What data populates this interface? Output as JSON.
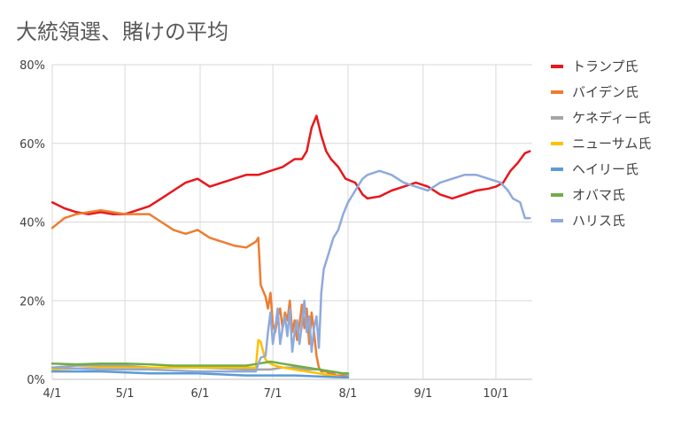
{
  "chart_data": {
    "type": "line",
    "title": "大統領選、賭けの平均",
    "xlabel": "",
    "ylabel": "",
    "x_ticks": [
      {
        "label": "4/1",
        "day": 0
      },
      {
        "label": "5/1",
        "day": 30
      },
      {
        "label": "6/1",
        "day": 61
      },
      {
        "label": "7/1",
        "day": 91
      },
      {
        "label": "8/1",
        "day": 122
      },
      {
        "label": "9/1",
        "day": 153
      },
      {
        "label": "10/1",
        "day": 183
      }
    ],
    "xlim": [
      0,
      198
    ],
    "ylim": [
      0,
      80
    ],
    "y_ticks": [
      "0%",
      "20%",
      "40%",
      "60%",
      "80%"
    ],
    "y_tick_values": [
      0,
      20,
      40,
      60,
      80
    ],
    "grid": true,
    "legend_position": "right",
    "series": [
      {
        "name": "トランプ氏",
        "color": "#e8171c",
        "x": [
          0,
          5,
          10,
          15,
          20,
          25,
          30,
          35,
          40,
          45,
          50,
          55,
          60,
          65,
          70,
          75,
          80,
          85,
          90,
          95,
          100,
          103,
          105,
          107,
          109,
          111,
          113,
          115,
          118,
          121,
          125,
          128,
          130,
          135,
          140,
          145,
          150,
          155,
          160,
          165,
          170,
          175,
          180,
          183,
          186,
          189,
          192,
          195,
          197
        ],
        "y": [
          45,
          43.5,
          42.5,
          42,
          42.5,
          42,
          42,
          43,
          44,
          46,
          48,
          50,
          51,
          49,
          50,
          51,
          52,
          52,
          53,
          54,
          56,
          56,
          58,
          64,
          67,
          62,
          58,
          56,
          54,
          51,
          50,
          47,
          46,
          46.5,
          48,
          49,
          50,
          49,
          47,
          46,
          47,
          48,
          48.5,
          49,
          50,
          53,
          55,
          57.5,
          58
        ]
      },
      {
        "name": "バイデン氏",
        "color": "#ed7d31",
        "x": [
          0,
          5,
          10,
          15,
          20,
          25,
          30,
          35,
          40,
          45,
          50,
          55,
          60,
          65,
          70,
          75,
          80,
          84,
          85,
          86,
          88,
          89,
          90,
          91,
          92,
          93,
          94,
          95,
          96,
          97,
          98,
          99,
          100,
          101,
          102,
          103,
          104,
          105,
          106,
          107,
          108,
          109,
          110,
          111,
          112,
          113,
          114,
          115,
          116,
          117,
          118,
          119,
          120,
          121,
          122
        ],
        "y": [
          38.5,
          41,
          42,
          42.5,
          43,
          42.5,
          42,
          42,
          42,
          40,
          38,
          37,
          38,
          36,
          35,
          34,
          33.5,
          35,
          36,
          24,
          21,
          18,
          22,
          14,
          12,
          16,
          18,
          13,
          17,
          15,
          20,
          12,
          15,
          10,
          14,
          19,
          13,
          18,
          9,
          17,
          12,
          6,
          3,
          2,
          2,
          2,
          1.5,
          1.5,
          1.5,
          1,
          1,
          1,
          1,
          1,
          1
        ]
      },
      {
        "name": "ケネディー氏",
        "color": "#a5a5a5",
        "x": [
          0,
          10,
          20,
          30,
          40,
          50,
          60,
          70,
          80,
          90,
          95,
          100,
          105,
          110,
          115,
          120,
          122
        ],
        "y": [
          3,
          3.5,
          3.5,
          3.5,
          3,
          3,
          3,
          2.8,
          2.5,
          2.5,
          3,
          3,
          2.5,
          2.5,
          2,
          1.5,
          1
        ]
      },
      {
        "name": "ニューサム氏",
        "color": "#ffc000",
        "x": [
          0,
          20,
          40,
          60,
          80,
          84,
          85,
          86,
          87,
          88,
          90,
          92,
          95,
          100,
          105,
          110,
          115,
          120,
          122
        ],
        "y": [
          2.5,
          3,
          3,
          3,
          3,
          3,
          10,
          9.5,
          7,
          5,
          4,
          3.5,
          3,
          2.5,
          2,
          1.5,
          1,
          0.5,
          0.5
        ]
      },
      {
        "name": "ヘイリー氏",
        "color": "#5b9bd5",
        "x": [
          0,
          20,
          40,
          60,
          80,
          100,
          120,
          122
        ],
        "y": [
          2,
          2,
          1.5,
          1.5,
          1,
          1,
          0.5,
          0.5
        ]
      },
      {
        "name": "オバマ氏",
        "color": "#70ad47",
        "x": [
          0,
          10,
          20,
          30,
          40,
          50,
          60,
          70,
          80,
          85,
          90,
          95,
          100,
          105,
          110,
          115,
          120,
          122
        ],
        "y": [
          4,
          3.8,
          4,
          4,
          3.8,
          3.5,
          3.5,
          3.5,
          3.5,
          4,
          4.5,
          4,
          3.5,
          3,
          2.5,
          2,
          1.5,
          1.5
        ]
      },
      {
        "name": "ハリス氏",
        "color": "#8faadc",
        "x": [
          0,
          20,
          40,
          60,
          80,
          84,
          85,
          86,
          88,
          89,
          90,
          91,
          92,
          93,
          94,
          95,
          96,
          97,
          98,
          99,
          100,
          101,
          102,
          103,
          104,
          105,
          106,
          107,
          108,
          109,
          110,
          111,
          112,
          114,
          116,
          118,
          120,
          122,
          125,
          128,
          130,
          135,
          140,
          145,
          150,
          155,
          160,
          165,
          170,
          175,
          180,
          185,
          188,
          190,
          193,
          195,
          197
        ],
        "y": [
          3,
          2.5,
          2.5,
          2,
          2,
          2,
          4,
          5.5,
          6,
          12,
          17,
          9,
          13,
          18,
          9,
          13,
          16,
          11,
          18,
          7,
          12,
          15,
          9,
          14,
          20,
          12,
          16,
          7,
          13,
          16,
          8,
          22,
          28,
          32,
          36,
          38,
          42,
          45,
          48,
          51,
          52,
          53,
          52,
          50,
          49,
          48,
          50,
          51,
          52,
          52,
          51,
          50,
          48,
          46,
          45,
          41,
          41
        ]
      }
    ]
  }
}
